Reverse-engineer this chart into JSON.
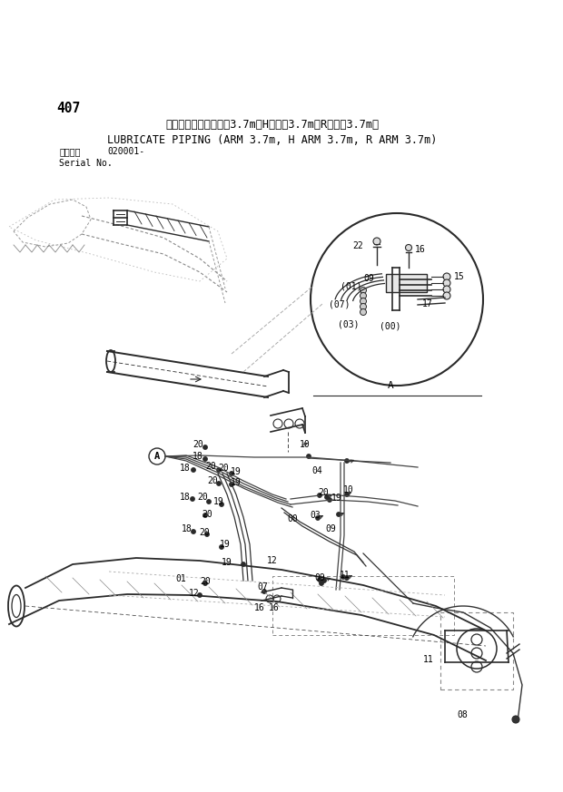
{
  "title_number": "407",
  "title_japanese": "集中給脂配管（アーム3.7m，Hアーム3.7m，Rアーム3.7m）",
  "title_english": "LUBRICATE PIPING (ARM 3.7m, H ARM 3.7m, R ARM 3.7m)",
  "serial_label": "適用号機",
  "serial_number": "020001-",
  "serial_no_label": "Serial No.",
  "bg_color": "#ffffff",
  "line_color": "#2a2a2a",
  "text_color": "#000000",
  "gray_color": "#666666",
  "light_gray": "#aaaaaa",
  "dpi": 100,
  "fig_width": 6.2,
  "fig_height": 8.73
}
